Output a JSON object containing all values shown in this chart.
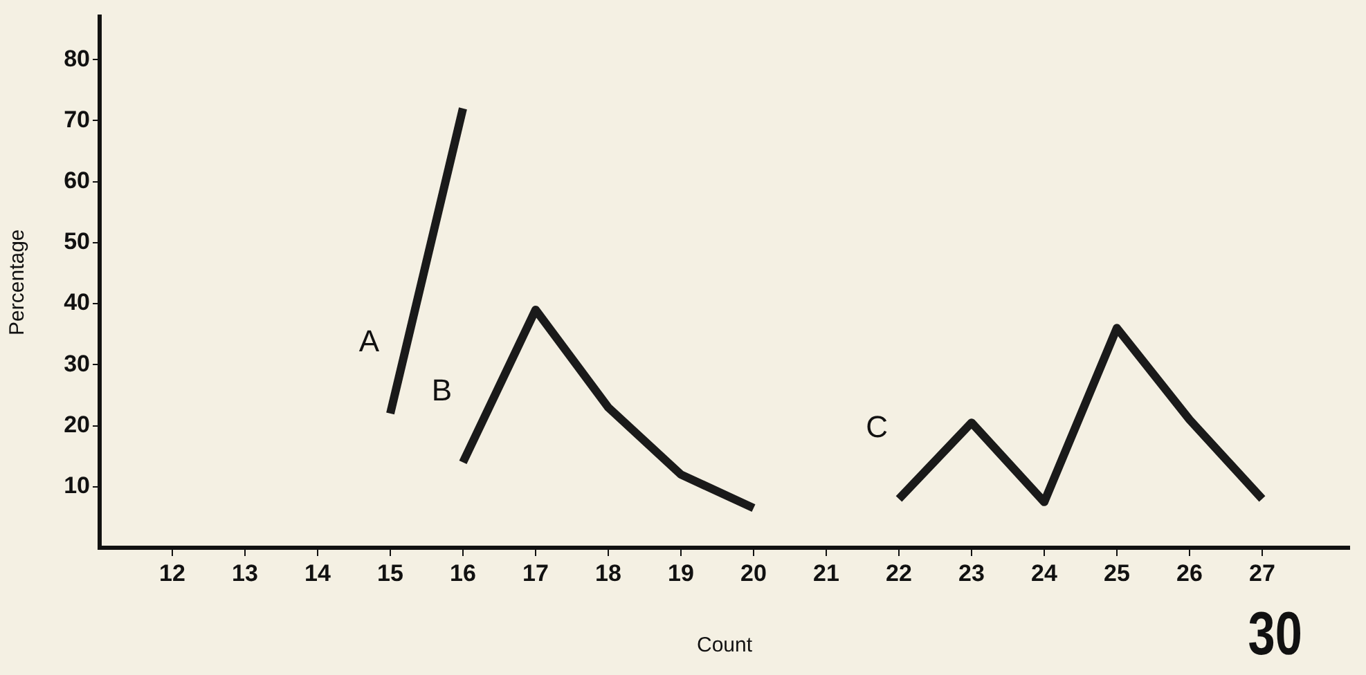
{
  "chart_data": {
    "type": "line",
    "xlabel": "Count",
    "ylabel": "Percentage",
    "xlim": [
      11,
      28.2
    ],
    "xticks": [
      12,
      13,
      14,
      15,
      16,
      17,
      18,
      19,
      20,
      21,
      22,
      23,
      24,
      25,
      26,
      27
    ],
    "ylim": [
      0,
      87
    ],
    "yticks": [
      10,
      20,
      30,
      40,
      50,
      60,
      70,
      80
    ],
    "series": [
      {
        "name": "A",
        "color": "#1a1a1a",
        "x": [
          15,
          16
        ],
        "values": [
          22,
          72
        ]
      },
      {
        "name": "B",
        "color": "#1a1a1a",
        "x": [
          16,
          17,
          18,
          19,
          20
        ],
        "values": [
          14,
          39,
          23,
          12,
          6.5
        ]
      },
      {
        "name": "C",
        "color": "#1a1a1a",
        "x": [
          22,
          23,
          24,
          25,
          26,
          27
        ],
        "values": [
          8,
          20.5,
          7.5,
          36,
          21,
          8
        ]
      }
    ],
    "annotations": [
      "30"
    ],
    "grid": false,
    "legend": false,
    "marker": "none",
    "line_style": "solid"
  }
}
